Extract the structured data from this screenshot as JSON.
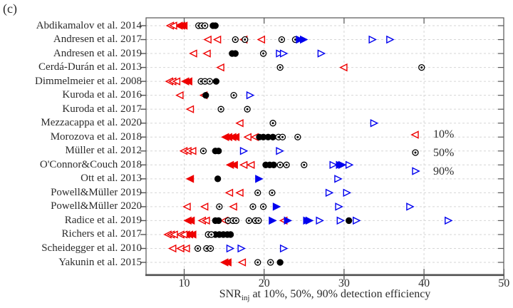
{
  "panel_label": "(c)",
  "axis": {
    "x_ticks": [
      10,
      20,
      30,
      40,
      50
    ],
    "xlabel_main": "SNR",
    "xlabel_sub": "inj",
    "xlabel_rest": " at 10%, 50%, 90% detection efficiency"
  },
  "legend": [
    {
      "label": "10%",
      "marker": "left-triangle-icon",
      "color": "#ee0000"
    },
    {
      "label": "50%",
      "marker": "circle-dot-icon",
      "color": "#000000"
    },
    {
      "label": "90%",
      "marker": "right-triangle-icon",
      "color": "#0000ee"
    }
  ],
  "colors": {
    "p10": "#ee0000",
    "p50": "#000000",
    "p90": "#0000ee",
    "grid": "#d6d6d6",
    "spine": "#555555"
  },
  "chart_data": {
    "type": "scatter",
    "title": "",
    "xlabel": "SNR_inj at 10%, 50%, 90% detection efficiency",
    "xlim": [
      5.2,
      50
    ],
    "x_ticks": [
      10,
      20,
      30,
      40,
      50
    ],
    "grid": "dashed both axes",
    "legend_position": "middle right",
    "series_names": [
      "10% detection efficiency (red left triangle)",
      "50% detection efficiency (black circle)",
      "90% detection efficiency (blue right triangle)"
    ],
    "rows": [
      {
        "label": "Abdikamalov et al. 2014",
        "p10": [
          8.3,
          8.7
        ],
        "p10f": [
          9.4,
          9.7,
          10.0
        ],
        "p50": [
          11.8,
          12.2,
          12.6
        ],
        "p50f": [
          13.6,
          13.9
        ],
        "p90": [],
        "p90f": []
      },
      {
        "label": "Andresen et al. 2017",
        "p10": [
          13.0,
          14.2,
          19.7
        ],
        "p10f": [
          17.5
        ],
        "p50": [
          16.4,
          17.6,
          22.2,
          23.9
        ],
        "p50f": [],
        "p90": [
          33.5,
          35.7
        ],
        "p90f": [
          24.4,
          24.9
        ]
      },
      {
        "label": "Andresen et al. 2019",
        "p10": [
          11.2,
          12.9
        ],
        "p10f": [],
        "p50": [
          19.9
        ],
        "p50f": [
          16.0,
          16.4
        ],
        "p90": [
          21.9,
          22.4,
          27.1
        ],
        "p90f": []
      },
      {
        "label": "Cerdá-Durán et al. 2013",
        "p10": [
          14.6,
          30.0
        ],
        "p10f": [],
        "p50": [
          22.0,
          39.7
        ],
        "p50f": [],
        "p90": [],
        "p90f": []
      },
      {
        "label": "Dimmelmeier et al. 2008",
        "p10": [
          8.2,
          8.6,
          9.1
        ],
        "p10f": [
          10.2,
          10.6
        ],
        "p50": [
          12.1,
          12.6,
          13.2
        ],
        "p50f": [
          14.0
        ],
        "p90": [],
        "p90f": []
      },
      {
        "label": "Kuroda et al. 2016",
        "p10": [
          9.5,
          12.5
        ],
        "p10f": [],
        "p50": [
          16.2
        ],
        "p50f": [
          12.7
        ],
        "p90": [
          18.2
        ],
        "p90f": []
      },
      {
        "label": "Kuroda et al. 2017",
        "p10": [
          10.8
        ],
        "p10f": [],
        "p50": [
          14.6,
          17.9
        ],
        "p50f": [],
        "p90": [],
        "p90f": []
      },
      {
        "label": "Mezzacappa et al. 2020",
        "p10": [
          17.0
        ],
        "p10f": [],
        "p50": [
          21.1
        ],
        "p50f": [],
        "p90": [
          33.7
        ],
        "p90f": []
      },
      {
        "label": "Morozova et al. 2018",
        "p10": [
          18.0,
          18.9
        ],
        "p10f": [
          15.2,
          15.6,
          16.1,
          16.5
        ],
        "p50": [
          21.8,
          22.3,
          24.2
        ],
        "p50f": [
          19.4,
          19.9,
          20.5,
          21.1
        ],
        "p90": [],
        "p90f": []
      },
      {
        "label": "Müller et al. 2012",
        "p10": [
          10.0,
          10.5,
          11.1
        ],
        "p10f": [],
        "p50": [
          12.4
        ],
        "p50f": [
          13.9,
          14.3
        ],
        "p90": [
          17.4,
          21.9
        ],
        "p90f": []
      },
      {
        "label": "O'Connor&Couch 2018",
        "p10": [
          17.5,
          18.4
        ],
        "p10f": [
          15.8,
          16.3
        ],
        "p50": [
          22.0,
          22.8,
          25.0
        ],
        "p50f": [
          20.2,
          20.7,
          21.2
        ],
        "p90": [
          28.6,
          30.6
        ],
        "p90f": [
          29.4,
          29.7
        ]
      },
      {
        "label": "Ott et al. 2013",
        "p10": [],
        "p10f": [
          10.8
        ],
        "p50": [],
        "p50f": [
          14.2
        ],
        "p90": [
          29.2
        ],
        "p90f": [
          19.3
        ]
      },
      {
        "label": "Powell&Müller 2019",
        "p10": [
          15.7,
          17.0
        ],
        "p10f": [],
        "p50": [
          19.2,
          21.0
        ],
        "p50f": [],
        "p90": [
          28.1,
          30.3
        ],
        "p90f": []
      },
      {
        "label": "Powell&Müller 2020",
        "p10": [
          10.4,
          12.6,
          16.2
        ],
        "p10f": [],
        "p50": [
          14.4,
          18.6,
          19.9
        ],
        "p50f": [],
        "p90": [
          29.3,
          38.2
        ],
        "p90f": [
          21.5
        ]
      },
      {
        "label": "Radice et al. 2019",
        "p10": [
          12.3,
          12.8,
          15.1,
          22.5
        ],
        "p10f": [
          10.5,
          10.9
        ],
        "p50": [
          15.5,
          16.1,
          16.5,
          18.1,
          18.9,
          19.3
        ],
        "p50f": [
          13.9,
          14.3,
          30.6
        ],
        "p90": [
          26.9,
          29.5,
          31.5,
          43.0
        ],
        "p90f": [
          21.0,
          22.9,
          25.3,
          25.6
        ]
      },
      {
        "label": "Richers et al. 2017",
        "p10": [
          8.0,
          8.4,
          8.8,
          9.6,
          10.0
        ],
        "p10f": [
          10.3,
          10.7,
          11.1
        ],
        "p50": [
          13.0,
          13.4
        ],
        "p50f": [
          13.9,
          14.4,
          14.9,
          15.4,
          15.8
        ],
        "p90": [],
        "p90f": []
      },
      {
        "label": "Scheidegger et al. 2010",
        "p10": [
          8.6,
          9.6,
          10.3
        ],
        "p10f": [],
        "p50": [
          11.7,
          12.8,
          13.3
        ],
        "p50f": [],
        "p90": [
          15.7,
          17.1,
          22.4
        ],
        "p90f": []
      },
      {
        "label": "Yakunin et al. 2015",
        "p10": [
          17.3
        ],
        "p10f": [
          15.1,
          15.5
        ],
        "p50": [
          19.2,
          20.8
        ],
        "p50f": [
          22.0
        ],
        "p90": [],
        "p90f": []
      }
    ]
  }
}
